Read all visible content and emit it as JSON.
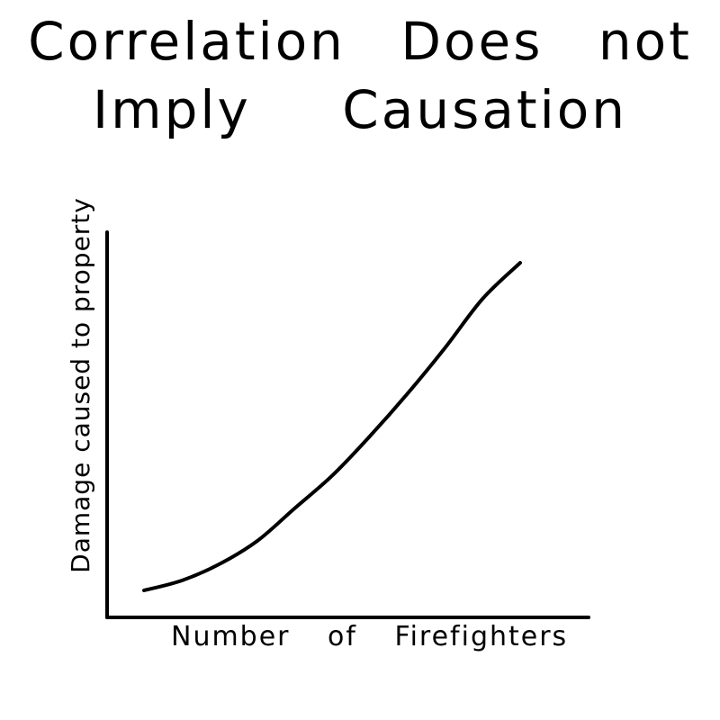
{
  "chart_data": {
    "type": "line",
    "title_line1": "Correlation Does not",
    "title_line2": "Imply Causation",
    "xlabel": "Number of Firefighters",
    "ylabel": "Damage caused to property",
    "grid": false,
    "series": [
      {
        "values": [
          [
            0.0,
            0.0
          ],
          [
            0.1,
            0.03
          ],
          [
            0.2,
            0.08
          ],
          [
            0.3,
            0.15
          ],
          [
            0.4,
            0.25
          ],
          [
            0.5,
            0.35
          ],
          [
            0.6,
            0.47
          ],
          [
            0.7,
            0.6
          ],
          [
            0.8,
            0.74
          ],
          [
            0.9,
            0.89
          ],
          [
            1.0,
            1.0
          ]
        ]
      }
    ]
  }
}
